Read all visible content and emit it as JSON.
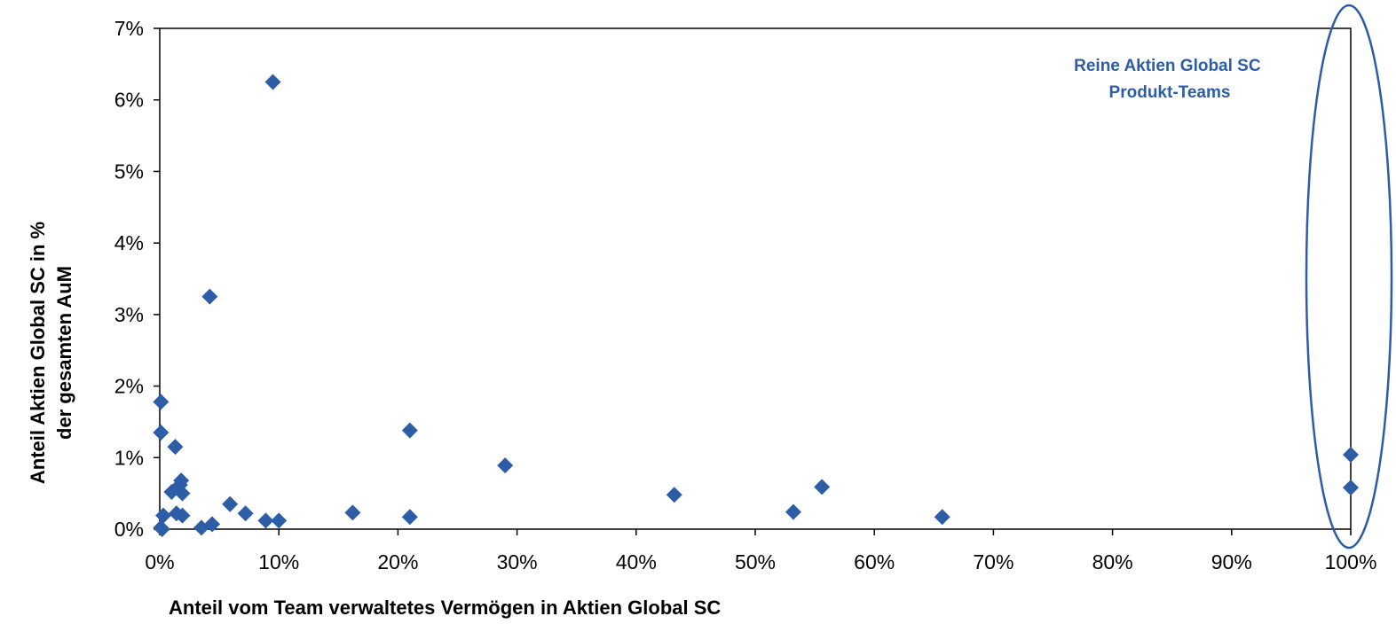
{
  "chart_data": {
    "type": "scatter",
    "xlabel": "Anteil vom Team verwaltetes Vermögen in Aktien Global SC",
    "ylabel_lines": [
      "Anteil Aktien Global SC in %",
      "der gesamten AuM"
    ],
    "xlim": [
      0,
      100
    ],
    "ylim": [
      0,
      7
    ],
    "x_ticks": [
      "0%",
      "10%",
      "20%",
      "30%",
      "40%",
      "50%",
      "60%",
      "70%",
      "80%",
      "90%",
      "100%"
    ],
    "y_ticks": [
      "0%",
      "1%",
      "2%",
      "3%",
      "4%",
      "5%",
      "6%",
      "7%"
    ],
    "grid": false,
    "marker": "diamond",
    "marker_color": "#2E5DA8",
    "annotation": {
      "lines": [
        "Reine Aktien Global SC",
        "Produkt-Teams"
      ],
      "color": "#2E5DA8",
      "highlight": "ellipse around x = 100%"
    },
    "points": [
      {
        "x": 9.5,
        "y": 6.25
      },
      {
        "x": 4.2,
        "y": 3.25
      },
      {
        "x": 0.1,
        "y": 1.78
      },
      {
        "x": 0.1,
        "y": 1.35
      },
      {
        "x": 1.3,
        "y": 1.15
      },
      {
        "x": 21.0,
        "y": 1.38
      },
      {
        "x": 29.0,
        "y": 0.89
      },
      {
        "x": 1.8,
        "y": 0.68
      },
      {
        "x": 1.7,
        "y": 0.62
      },
      {
        "x": 1.0,
        "y": 0.52
      },
      {
        "x": 1.9,
        "y": 0.5
      },
      {
        "x": 5.9,
        "y": 0.35
      },
      {
        "x": 7.2,
        "y": 0.22
      },
      {
        "x": 1.4,
        "y": 0.22
      },
      {
        "x": 1.9,
        "y": 0.19
      },
      {
        "x": 0.3,
        "y": 0.19
      },
      {
        "x": 8.9,
        "y": 0.12
      },
      {
        "x": 10.0,
        "y": 0.12
      },
      {
        "x": 4.4,
        "y": 0.07
      },
      {
        "x": 3.5,
        "y": 0.02
      },
      {
        "x": 0.1,
        "y": 0.02
      },
      {
        "x": 0.2,
        "y": 0.0
      },
      {
        "x": 16.2,
        "y": 0.23
      },
      {
        "x": 21.0,
        "y": 0.17
      },
      {
        "x": 43.2,
        "y": 0.48
      },
      {
        "x": 53.2,
        "y": 0.24
      },
      {
        "x": 55.6,
        "y": 0.59
      },
      {
        "x": 65.7,
        "y": 0.17
      },
      {
        "x": 100.0,
        "y": 1.04
      },
      {
        "x": 100.0,
        "y": 0.58
      }
    ]
  }
}
